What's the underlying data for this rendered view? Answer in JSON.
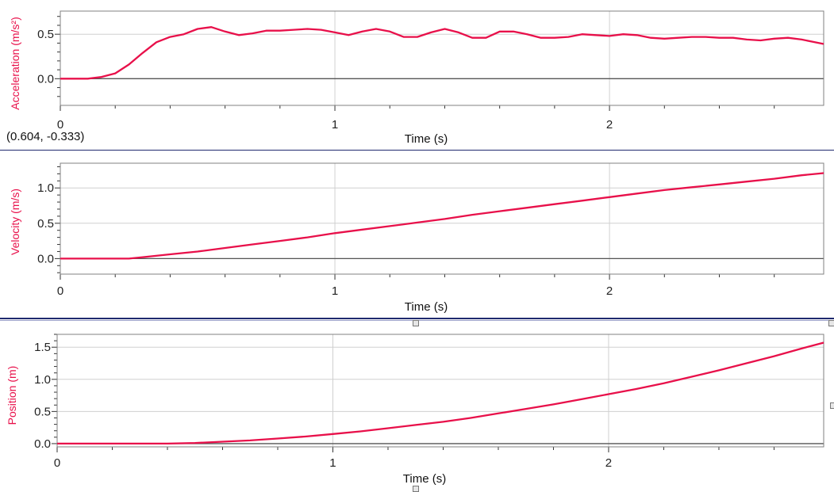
{
  "readout": "(0.604, -0.333)",
  "colors": {
    "series": "#e8104a",
    "grid": "#d0d0d0",
    "zero_line": "#555555",
    "separator": "#1f2a6e"
  },
  "chart_data": [
    {
      "type": "line",
      "title": "",
      "xlabel": "Time (s)",
      "ylabel": "Acceleration (m/s²)",
      "xlim": [
        0,
        2.78
      ],
      "ylim": [
        -0.3,
        0.76
      ],
      "xticks": [
        "0",
        "1",
        "2"
      ],
      "yticks": [
        "0.0",
        "0.5"
      ],
      "grid": true,
      "series": [
        {
          "x": [
            0,
            0.05,
            0.1,
            0.15,
            0.2,
            0.25,
            0.3,
            0.35,
            0.4,
            0.45,
            0.5,
            0.55,
            0.6,
            0.65,
            0.7,
            0.75,
            0.8,
            0.85,
            0.9,
            0.95,
            1.0,
            1.05,
            1.1,
            1.15,
            1.2,
            1.25,
            1.3,
            1.35,
            1.4,
            1.45,
            1.5,
            1.55,
            1.6,
            1.65,
            1.7,
            1.75,
            1.8,
            1.85,
            1.9,
            1.95,
            2.0,
            2.05,
            2.1,
            2.15,
            2.2,
            2.25,
            2.3,
            2.35,
            2.4,
            2.45,
            2.5,
            2.55,
            2.6,
            2.65,
            2.7,
            2.78
          ],
          "y": [
            0.0,
            0.0,
            0.0,
            0.02,
            0.06,
            0.16,
            0.29,
            0.41,
            0.47,
            0.5,
            0.56,
            0.58,
            0.53,
            0.49,
            0.51,
            0.54,
            0.54,
            0.55,
            0.56,
            0.55,
            0.52,
            0.49,
            0.53,
            0.56,
            0.53,
            0.47,
            0.47,
            0.52,
            0.56,
            0.52,
            0.46,
            0.46,
            0.53,
            0.53,
            0.5,
            0.46,
            0.46,
            0.47,
            0.5,
            0.49,
            0.48,
            0.5,
            0.49,
            0.46,
            0.45,
            0.46,
            0.47,
            0.47,
            0.46,
            0.46,
            0.44,
            0.43,
            0.45,
            0.46,
            0.44,
            0.39
          ]
        }
      ]
    },
    {
      "type": "line",
      "title": "",
      "xlabel": "Time (s)",
      "ylabel": "Velocity (m/s)",
      "xlim": [
        0,
        2.78
      ],
      "ylim": [
        -0.22,
        1.35
      ],
      "xticks": [
        "0",
        "1",
        "2"
      ],
      "yticks": [
        "0.0",
        "0.5",
        "1.0"
      ],
      "grid": true,
      "series": [
        {
          "x": [
            0,
            0.1,
            0.2,
            0.25,
            0.3,
            0.4,
            0.5,
            0.6,
            0.7,
            0.8,
            0.9,
            1.0,
            1.1,
            1.2,
            1.3,
            1.4,
            1.5,
            1.6,
            1.7,
            1.8,
            1.9,
            2.0,
            2.1,
            2.2,
            2.3,
            2.4,
            2.5,
            2.6,
            2.7,
            2.78
          ],
          "y": [
            0.0,
            0.0,
            0.0,
            0.0,
            0.02,
            0.06,
            0.1,
            0.15,
            0.2,
            0.25,
            0.3,
            0.36,
            0.41,
            0.46,
            0.51,
            0.56,
            0.62,
            0.67,
            0.72,
            0.77,
            0.82,
            0.87,
            0.92,
            0.97,
            1.01,
            1.05,
            1.09,
            1.13,
            1.18,
            1.21
          ]
        }
      ]
    },
    {
      "type": "line",
      "title": "",
      "xlabel": "Time (s)",
      "ylabel": "Position (m)",
      "xlim": [
        0,
        2.78
      ],
      "ylim": [
        -0.05,
        1.7
      ],
      "xticks": [
        "0",
        "1",
        "2"
      ],
      "yticks": [
        "0.0",
        "0.5",
        "1.0",
        "1.5"
      ],
      "grid": true,
      "series": [
        {
          "x": [
            0,
            0.1,
            0.2,
            0.3,
            0.4,
            0.5,
            0.6,
            0.7,
            0.8,
            0.9,
            1.0,
            1.1,
            1.2,
            1.3,
            1.4,
            1.5,
            1.6,
            1.7,
            1.8,
            1.9,
            2.0,
            2.1,
            2.2,
            2.3,
            2.4,
            2.5,
            2.6,
            2.7,
            2.78
          ],
          "y": [
            0.0,
            0.0,
            0.0,
            0.0,
            0.0,
            0.01,
            0.03,
            0.05,
            0.08,
            0.11,
            0.15,
            0.19,
            0.24,
            0.29,
            0.34,
            0.4,
            0.47,
            0.54,
            0.61,
            0.69,
            0.77,
            0.85,
            0.94,
            1.04,
            1.14,
            1.25,
            1.36,
            1.48,
            1.57
          ]
        }
      ]
    }
  ]
}
